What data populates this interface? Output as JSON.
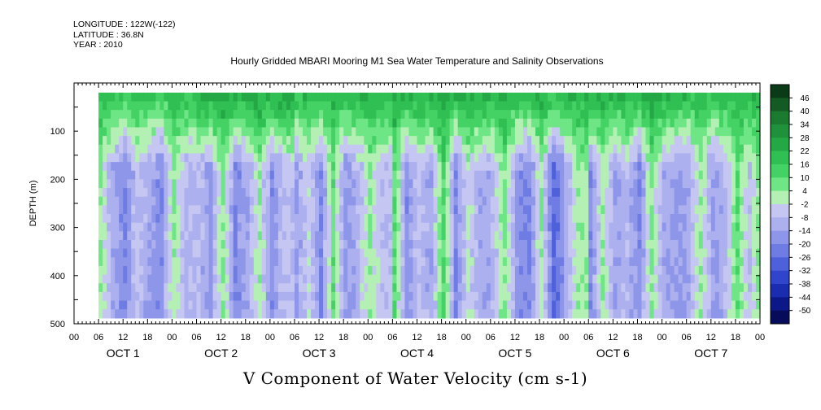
{
  "header": {
    "longitude": "LONGITUDE : 122W(-122)",
    "latitude": "LATITUDE : 36.8N",
    "year": "YEAR : 2010",
    "title": "Hourly Gridded MBARI Mooring M1 Sea Water Temperature and Salinity Observations"
  },
  "chart_data": {
    "type": "heatmap",
    "title": "Hourly Gridded MBARI Mooring M1 Sea Water Temperature and Salinity Observations",
    "xlabel": "V Component of Water Velocity (cm s-1)",
    "ylabel": "DEPTH (m)",
    "ylim": [
      500,
      0
    ],
    "y_ticks": [
      "100",
      "200",
      "300",
      "400",
      "500"
    ],
    "y_tick_values": [
      100,
      200,
      300,
      400,
      500
    ],
    "x_hour_ticks": [
      "00",
      "06",
      "12",
      "18",
      "00",
      "06",
      "12",
      "18",
      "00",
      "06",
      "12",
      "18",
      "00",
      "06",
      "12",
      "18",
      "00",
      "06",
      "12",
      "18",
      "00",
      "06",
      "12",
      "18",
      "00",
      "06",
      "12",
      "18",
      "00"
    ],
    "day_labels": [
      "OCT  1",
      "OCT  2",
      "OCT  3",
      "OCT  4",
      "OCT  5",
      "OCT  6",
      "OCT  7"
    ],
    "data_extent_hours": [
      6,
      168
    ],
    "data_extent_depth_m": [
      20,
      488
    ],
    "colorbar": {
      "labels": [
        "46",
        "40",
        "34",
        "28",
        "22",
        "16",
        "10",
        "4",
        "-2",
        "-8",
        "-14",
        "-20",
        "-26",
        "-32",
        "-38",
        "-44",
        "-50"
      ],
      "levels_top_to_bottom": [
        {
          "value": 49,
          "color": "#0a3a16"
        },
        {
          "value": 43,
          "color": "#145a24"
        },
        {
          "value": 37,
          "color": "#1a7a30"
        },
        {
          "value": 31,
          "color": "#1e913a"
        },
        {
          "value": 25,
          "color": "#24a846"
        },
        {
          "value": 19,
          "color": "#2fbf52"
        },
        {
          "value": 13,
          "color": "#44d264"
        },
        {
          "value": 7,
          "color": "#6ee686"
        },
        {
          "value": 1,
          "color": "#b4f0b4"
        },
        {
          "value": -5,
          "color": "#c6c6f2"
        },
        {
          "value": -11,
          "color": "#acb0ee"
        },
        {
          "value": -17,
          "color": "#8e96ea"
        },
        {
          "value": -23,
          "color": "#6e7ce4"
        },
        {
          "value": -29,
          "color": "#4e60da"
        },
        {
          "value": -35,
          "color": "#3044cc"
        },
        {
          "value": -41,
          "color": "#1a2cb0"
        },
        {
          "value": -47,
          "color": "#0c1888"
        },
        {
          "value": -53,
          "color": "#060c5a"
        }
      ]
    },
    "day_profiles": [
      {
        "start_hour": 6,
        "surface_value": 20,
        "deep_pattern": [
          3,
          -12,
          -20,
          -6,
          -14,
          -18,
          4,
          -10
        ]
      },
      {
        "start_hour": 30,
        "surface_value": 28,
        "deep_pattern": [
          -8,
          -16,
          6,
          -20,
          -12,
          2,
          -18,
          -6
        ]
      },
      {
        "start_hour": 54,
        "surface_value": 22,
        "deep_pattern": [
          -14,
          -4,
          -20,
          8,
          -16,
          -10,
          4,
          -8
        ]
      },
      {
        "start_hour": 78,
        "surface_value": 26,
        "deep_pattern": [
          10,
          -18,
          -6,
          -14,
          12,
          -20,
          -2,
          -12
        ]
      },
      {
        "start_hour": 102,
        "surface_value": 24,
        "deep_pattern": [
          -10,
          6,
          -16,
          -22,
          4,
          -28,
          -12,
          2
        ]
      },
      {
        "start_hour": 126,
        "surface_value": 26,
        "deep_pattern": [
          -18,
          2,
          -14,
          -8,
          -20,
          6,
          -12,
          -16
        ]
      },
      {
        "start_hour": 150,
        "surface_value": 22,
        "deep_pattern": [
          -12,
          4,
          -16,
          -10,
          8,
          -6,
          10,
          -4
        ]
      }
    ]
  }
}
